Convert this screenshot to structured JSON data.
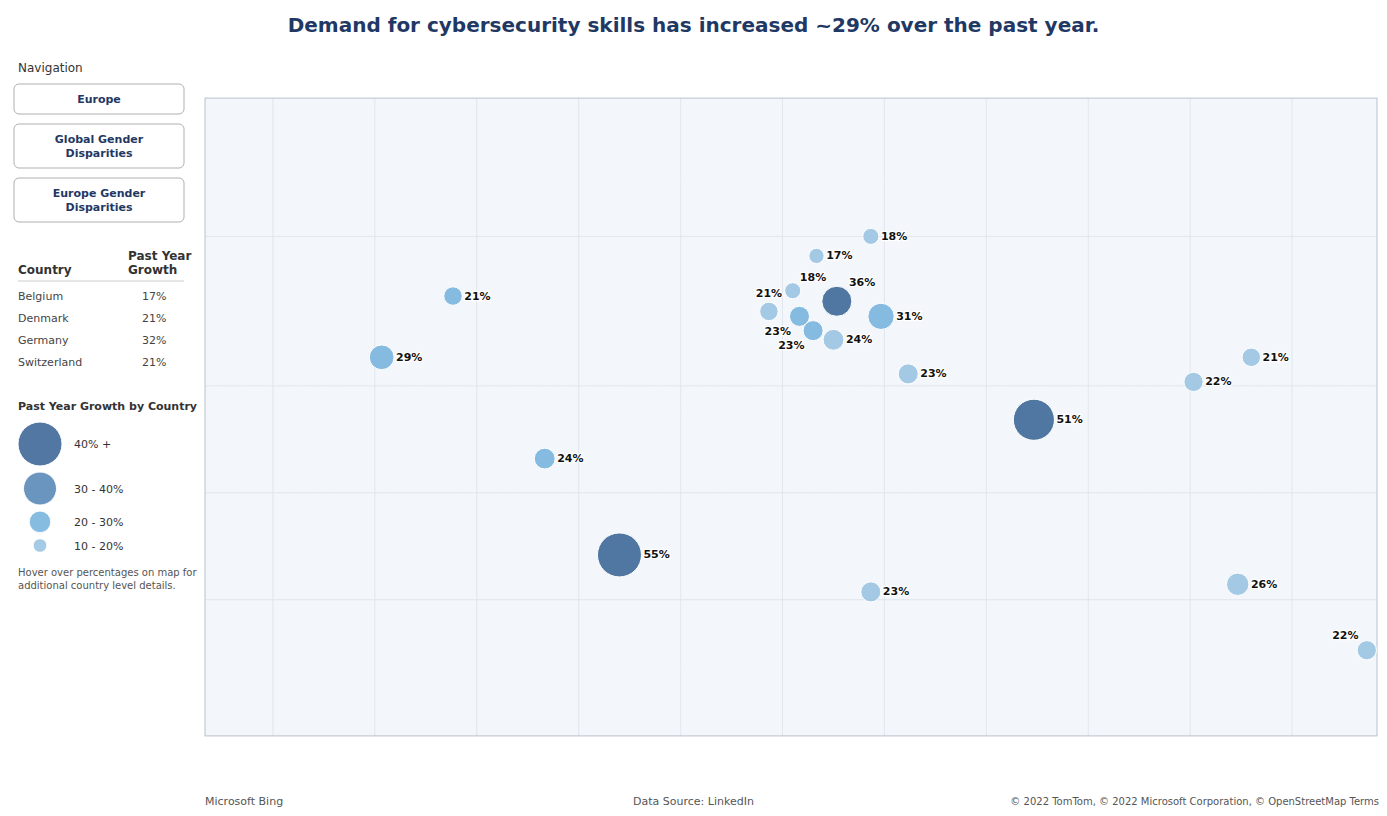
{
  "chart_data": {
    "type": "bubble",
    "title": "Demand for cybersecurity skills has increased ~29% over the past year.",
    "x": [
      -97,
      -118,
      -70,
      -48,
      10,
      26,
      3,
      -4,
      16,
      5,
      9,
      15,
      29,
      37,
      74,
      121,
      138,
      134,
      172,
      26
    ],
    "y": [
      50,
      37,
      10,
      -18,
      57,
      60,
      51,
      47,
      49,
      46,
      43,
      41,
      46,
      33,
      21,
      31,
      37,
      -26,
      -42,
      -28
    ],
    "values": [
      21,
      29,
      24,
      55,
      17,
      18,
      18,
      21,
      36,
      23,
      23,
      24,
      31,
      23,
      51,
      22,
      21,
      26,
      22,
      23
    ],
    "value_labels": [
      "21%",
      "29%",
      "24%",
      "55%",
      "17%",
      "18%",
      "18%",
      "21%",
      "36%",
      "23%",
      "23%",
      "24%",
      "31%",
      "23%",
      "51%",
      "22%",
      "21%",
      "26%",
      "22%",
      "23%"
    ],
    "colors": [
      "#7ab5de",
      "#7ab5de",
      "#7ab5de",
      "#3e6898",
      "#9bc4e2",
      "#9bc4e2",
      "#9bc4e2",
      "#9bc4e2",
      "#3e6898",
      "#7ab5de",
      "#7ab5de",
      "#9bc4e2",
      "#7ab5de",
      "#9bc4e2",
      "#3e6898",
      "#9bc4e2",
      "#9bc4e2",
      "#9bc4e2",
      "#9bc4e2",
      "#9bc4e2"
    ],
    "data_labels": true,
    "tick_labels": false,
    "xlim": [
      -170,
      175
    ],
    "ylim": [
      -58,
      75
    ],
    "legend_title": "Past Year Growth by Country",
    "legend_items": [
      "40% +",
      "30 - 40%",
      "20 - 30%",
      "10 - 20%"
    ],
    "legend_sizes": [
      55,
      40,
      25,
      15
    ],
    "legend_colors": [
      "#3e6898",
      "#5a8ab8",
      "#7ab5de",
      "#9bc4e2"
    ],
    "nav_label": "Navigation",
    "nav_buttons": [
      "Europe",
      "Global Gender\nDisparities",
      "Europe Gender\nDisparities"
    ],
    "table_headers": [
      "Country",
      "Past Year\nGrowth"
    ],
    "table_rows": [
      [
        "Belgium",
        "17%"
      ],
      [
        "Denmark",
        "21%"
      ],
      [
        "Germany",
        "32%"
      ],
      [
        "Switzerland",
        "21%"
      ]
    ],
    "note": "Hover over percentages on map for\nadditional country level details.",
    "footer_left": "Microsoft Bing",
    "footer_center": "Data Source: LinkedIn",
    "footer_right": "© 2022 TomTom, © 2022 Microsoft Corporation, © OpenStreetMap  Terms"
  }
}
